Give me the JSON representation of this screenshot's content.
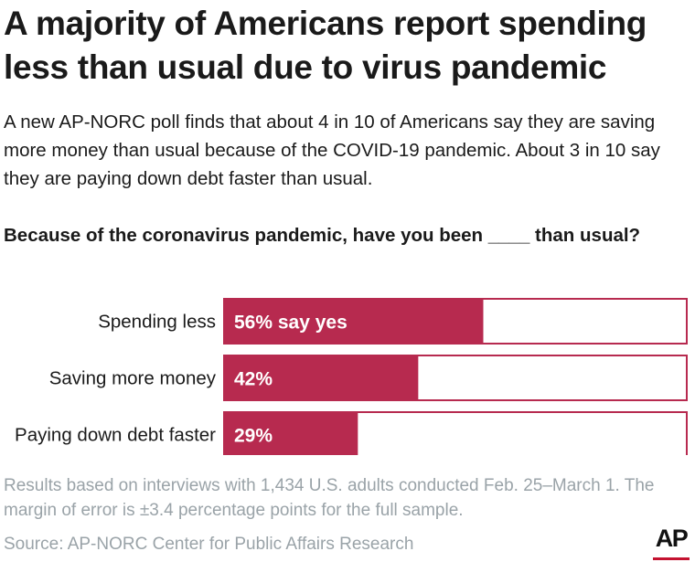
{
  "header": {
    "title": "A majority of Americans report spending less than usual due to virus pandemic",
    "subtitle": "A new AP-NORC poll finds that about 4 in 10 of Americans say they are saving more money than usual because of the COVID-19 pandemic. About 3 in 10 say they are paying down debt faster than usual.",
    "question": "Because of the coronavirus pandemic, have you been ____ than usual?"
  },
  "colors": {
    "bar_fill": "#b72a4f",
    "bar_border": "#b72a4f",
    "track": "#ffffff",
    "note_text": "#9aa3a8"
  },
  "chart_data": {
    "type": "bar",
    "orientation": "horizontal",
    "categories": [
      "Spending less",
      "Saving more money",
      "Paying down debt faster"
    ],
    "values": [
      56,
      42,
      29
    ],
    "data_labels": [
      "56% say yes",
      "42%",
      "29%"
    ],
    "unit": "%",
    "xlim": [
      0,
      100
    ],
    "grid": false
  },
  "footer": {
    "note": "Results based on interviews with 1,434 U.S. adults conducted Feb. 25–March 1. The margin of error is ±3.4 percentage points for the full sample.",
    "source": "Source: AP-NORC Center for Public Affairs Research",
    "logo_text": "AP"
  }
}
